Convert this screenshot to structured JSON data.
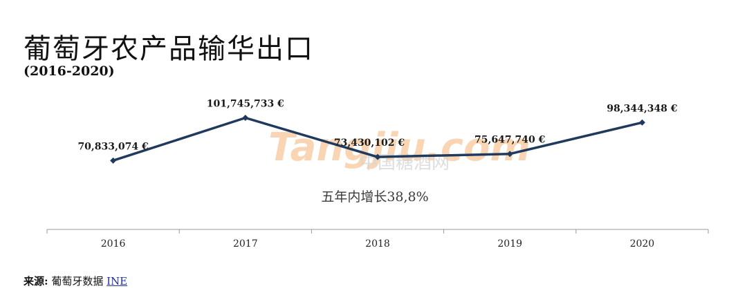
{
  "header": {
    "title": "葡萄牙农产品输华出口",
    "subtitle": "(2016-2020)"
  },
  "chart_data": {
    "type": "line",
    "categories": [
      "2016",
      "2017",
      "2018",
      "2019",
      "2020"
    ],
    "values": [
      70833074,
      101745733,
      73430102,
      75647740,
      98344348
    ],
    "value_labels": [
      "70,833,074 €",
      "101,745,733 €",
      "73,430,102 €",
      "75,647,740 €",
      "98,344,348 €"
    ],
    "annotation": "五年内增长38,8%",
    "ylim": [
      40000000,
      110000000
    ],
    "grid": false,
    "line_color": "#1f3a5c"
  },
  "watermark": {
    "brand": "Tangjiu.com",
    "cn": "中国糖酒网"
  },
  "footer": {
    "source_label": "来源:",
    "source_text": "葡萄牙数据",
    "source_link": "INE"
  }
}
